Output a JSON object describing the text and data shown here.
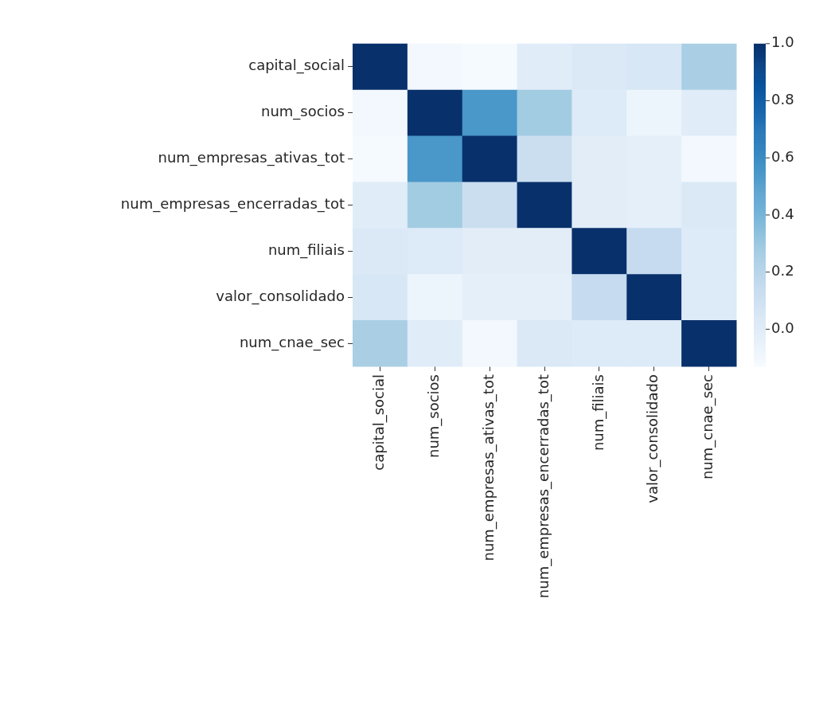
{
  "chart_data": {
    "type": "heatmap",
    "categories": [
      "capital_social",
      "num_socios",
      "num_empresas_ativas_tot",
      "num_empresas_encerradas_tot",
      "num_filiais",
      "valor_consolidado",
      "num_cnae_sec"
    ],
    "y_categories": [
      "capital_social",
      "num_socios",
      "num_empresas_ativas_tot",
      "num_empresas_encerradas_tot",
      "num_filiais",
      "valor_consolidado",
      "num_cnae_sec"
    ],
    "cells": [
      [
        1,
        -0.1,
        -0.12,
        0.0,
        0.03,
        0.05,
        0.25
      ],
      [
        -0.1,
        1,
        0.55,
        0.28,
        0.02,
        -0.07,
        0.0
      ],
      [
        -0.12,
        0.55,
        1,
        0.13,
        -0.01,
        -0.02,
        -0.1
      ],
      [
        0.0,
        0.28,
        0.13,
        1,
        -0.01,
        -0.02,
        0.03
      ],
      [
        0.03,
        0.02,
        -0.01,
        -0.01,
        1,
        0.15,
        0.02
      ],
      [
        0.05,
        -0.07,
        -0.02,
        -0.02,
        0.15,
        1,
        0.02
      ],
      [
        0.25,
        0.0,
        -0.1,
        0.03,
        0.02,
        0.02,
        1
      ]
    ],
    "clim": [
      -0.13,
      1.0
    ],
    "cticks": [
      {
        "value": 0.0,
        "label": "0.0"
      },
      {
        "value": 0.2,
        "label": "0.2"
      },
      {
        "value": 0.4,
        "label": "0.4"
      },
      {
        "value": 0.6,
        "label": "0.6"
      },
      {
        "value": 0.8,
        "label": "0.8"
      },
      {
        "value": 1.0,
        "label": "1.0"
      }
    ]
  }
}
